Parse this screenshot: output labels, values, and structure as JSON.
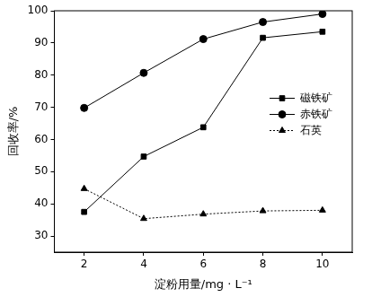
{
  "chart_data": {
    "type": "line",
    "x_label": "淀粉用量/mg · L⁻¹",
    "y_label": "回收率/%",
    "x": [
      2,
      4,
      6,
      8,
      10
    ],
    "series": [
      {
        "name": "磁铁矿",
        "color": "#000000",
        "marker": "square",
        "line_style": "solid",
        "values": [
          37.5,
          54.7,
          63.8,
          91.6,
          93.5
        ]
      },
      {
        "name": "赤铁矿",
        "color": "#000000",
        "marker": "circle",
        "line_style": "solid",
        "values": [
          69.8,
          80.7,
          91.2,
          96.5,
          99.0
        ]
      },
      {
        "name": "石英",
        "color": "#000000",
        "marker": "triangle",
        "line_style": "dotted",
        "values": [
          44.7,
          35.4,
          36.8,
          37.8,
          38.0
        ]
      }
    ],
    "xlim": [
      1,
      11
    ],
    "xticks": [
      2,
      4,
      6,
      8,
      10
    ],
    "ylim": [
      25,
      100
    ],
    "yticks": [
      30,
      40,
      50,
      60,
      70,
      80,
      90,
      100
    ],
    "grid": false,
    "legend": "right"
  }
}
